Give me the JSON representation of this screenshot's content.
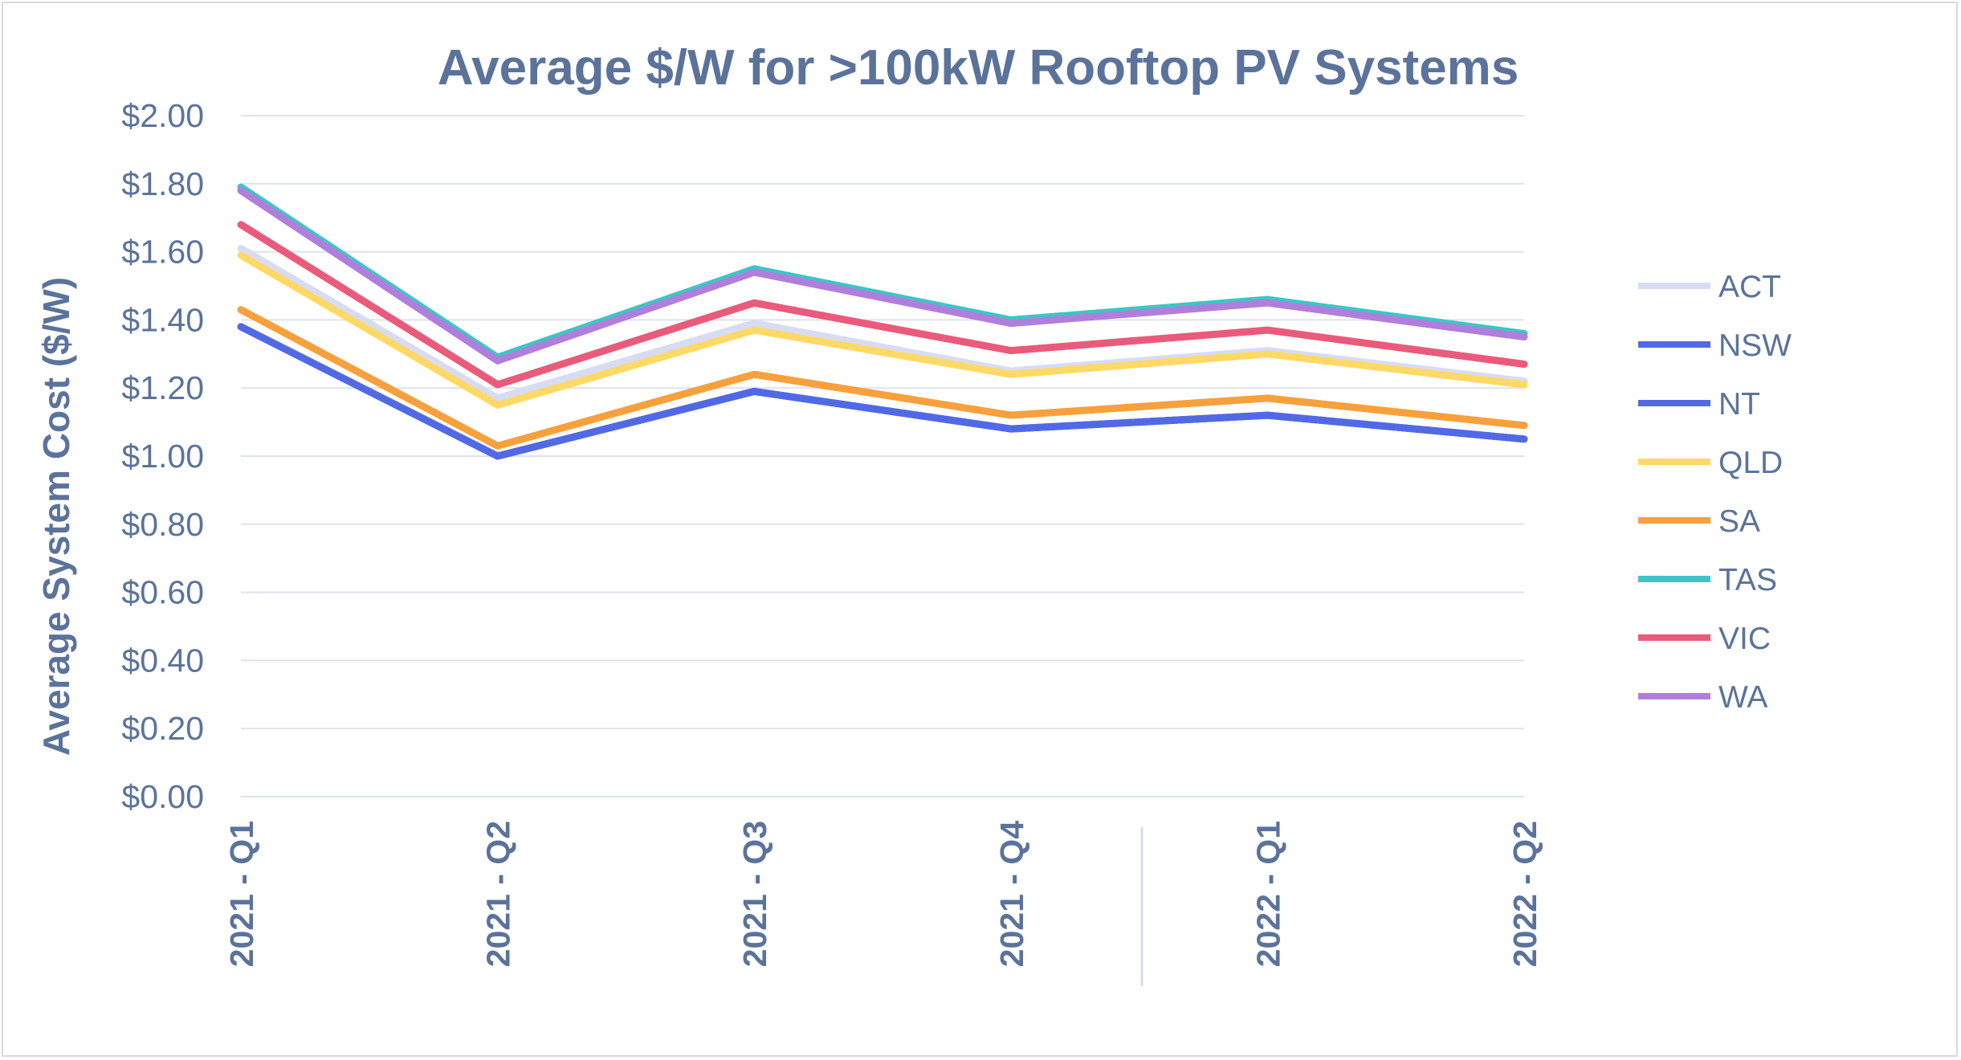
{
  "chart_data": {
    "type": "line",
    "title": "Average $/W for >100kW Rooftop PV Systems",
    "ylabel": "Average System Cost ($/W)",
    "xlabel": "",
    "ylim": [
      0,
      2
    ],
    "yticks": [
      "$0.00",
      "$0.20",
      "$0.40",
      "$0.60",
      "$0.80",
      "$1.00",
      "$1.20",
      "$1.40",
      "$1.60",
      "$1.80",
      "$2.00"
    ],
    "categories": [
      "2021 - Q1",
      "2021 - Q2",
      "2021 - Q3",
      "2021 - Q4",
      "2022 - Q1",
      "2022 - Q2"
    ],
    "grid": true,
    "legend_position": "right",
    "series": [
      {
        "name": "ACT",
        "color": "#d7dcf3",
        "values": [
          1.61,
          1.17,
          1.39,
          1.25,
          1.31,
          1.22
        ]
      },
      {
        "name": "NSW",
        "color": "#5269e6",
        "values": [
          1.38,
          1.0,
          1.19,
          1.08,
          1.12,
          1.05
        ]
      },
      {
        "name": "NT",
        "color": "#5269e6",
        "values": [
          1.38,
          1.0,
          1.19,
          1.08,
          1.12,
          1.05
        ]
      },
      {
        "name": "QLD",
        "color": "#ffd966",
        "values": [
          1.59,
          1.15,
          1.37,
          1.24,
          1.3,
          1.21
        ]
      },
      {
        "name": "SA",
        "color": "#f7a03c",
        "values": [
          1.43,
          1.03,
          1.24,
          1.12,
          1.17,
          1.09
        ]
      },
      {
        "name": "TAS",
        "color": "#3cc6c6",
        "values": [
          1.79,
          1.29,
          1.55,
          1.4,
          1.46,
          1.36
        ]
      },
      {
        "name": "VIC",
        "color": "#ea5a7a",
        "values": [
          1.68,
          1.21,
          1.45,
          1.31,
          1.37,
          1.27
        ]
      },
      {
        "name": "WA",
        "color": "#b07fdc",
        "values": [
          1.78,
          1.28,
          1.54,
          1.39,
          1.45,
          1.35
        ]
      }
    ]
  }
}
